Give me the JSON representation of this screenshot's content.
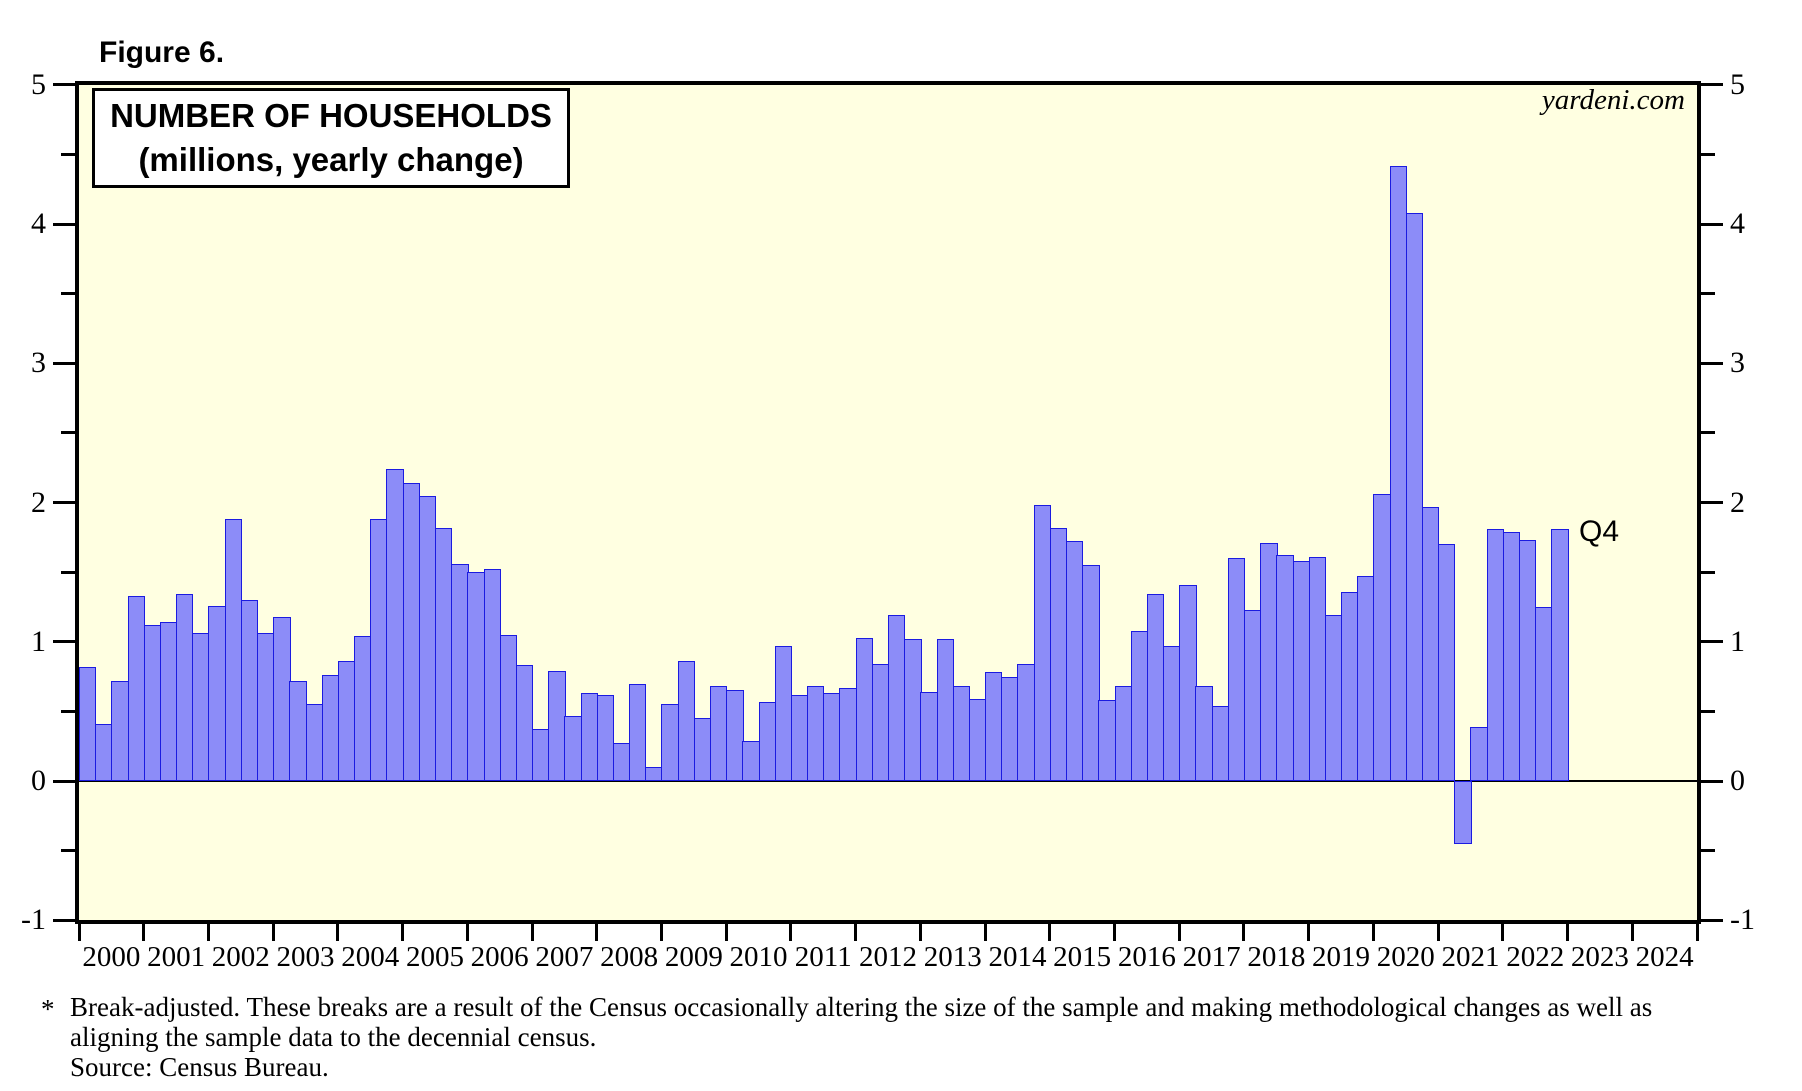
{
  "figure_label": "Figure 6.",
  "title": {
    "line1": "NUMBER OF HOUSEHOLDS",
    "line2": "(millions, yearly change)"
  },
  "watermark": "yardeni.com",
  "annotation": "Q4",
  "footnote": {
    "asterisk": "*",
    "line1": "Break-adjusted. These breaks are a result of the Census occasionally altering the size of the sample and making methodological changes as well as",
    "line2": "aligning the sample data to the decennial census.",
    "line3": "Source: Census Bureau."
  },
  "colors": {
    "plot_background": "#FFFFE1",
    "bar_fill": "#8C8CF8",
    "bar_border": "#1B1BE0",
    "frame": "#000000"
  },
  "chart_data": {
    "type": "bar",
    "title": "NUMBER OF HOUSEHOLDS",
    "subtitle": "(millions, yearly change)",
    "frequency": "quarterly",
    "first_period": "2000 Q1",
    "last_period": "2022 Q4",
    "last_period_label": "Q4",
    "ylim": [
      -1,
      5
    ],
    "y_major_ticks": [
      -1,
      0,
      1,
      2,
      3,
      4,
      5
    ],
    "y_minor_step": 0.5,
    "grid": false,
    "x_axis_year_labels": [
      "2000",
      "2001",
      "2002",
      "2003",
      "2004",
      "2005",
      "2006",
      "2007",
      "2008",
      "2009",
      "2010",
      "2011",
      "2012",
      "2013",
      "2014",
      "2015",
      "2016",
      "2017",
      "2018",
      "2019",
      "2020",
      "2021",
      "2022",
      "2023",
      "2024"
    ],
    "years": [
      {
        "year": 2000,
        "values": [
          0.82,
          0.41,
          0.72,
          1.33
        ]
      },
      {
        "year": 2001,
        "values": [
          1.12,
          1.14,
          1.34,
          1.06
        ]
      },
      {
        "year": 2002,
        "values": [
          1.26,
          1.88,
          1.3,
          1.06
        ]
      },
      {
        "year": 2003,
        "values": [
          1.18,
          0.72,
          0.55,
          0.76
        ]
      },
      {
        "year": 2004,
        "values": [
          0.86,
          1.04,
          1.88,
          2.24
        ]
      },
      {
        "year": 2005,
        "values": [
          2.14,
          2.05,
          1.82,
          1.56
        ]
      },
      {
        "year": 2006,
        "values": [
          1.5,
          1.52,
          1.05,
          0.83
        ]
      },
      {
        "year": 2007,
        "values": [
          0.37,
          0.79,
          0.47,
          0.63
        ]
      },
      {
        "year": 2008,
        "values": [
          0.62,
          0.27,
          0.7,
          0.1
        ]
      },
      {
        "year": 2009,
        "values": [
          0.55,
          0.86,
          0.45,
          0.68
        ]
      },
      {
        "year": 2010,
        "values": [
          0.65,
          0.29,
          0.57,
          0.97
        ]
      },
      {
        "year": 2011,
        "values": [
          0.62,
          0.68,
          0.63,
          0.67
        ]
      },
      {
        "year": 2012,
        "values": [
          1.03,
          0.84,
          1.19,
          1.02
        ]
      },
      {
        "year": 2013,
        "values": [
          0.64,
          1.02,
          0.68,
          0.59
        ]
      },
      {
        "year": 2014,
        "values": [
          0.78,
          0.75,
          0.84,
          1.98
        ]
      },
      {
        "year": 2015,
        "values": [
          1.82,
          1.72,
          1.55,
          0.58
        ]
      },
      {
        "year": 2016,
        "values": [
          0.68,
          1.08,
          1.34,
          0.97
        ]
      },
      {
        "year": 2017,
        "values": [
          1.41,
          0.68,
          0.54,
          1.6
        ]
      },
      {
        "year": 2018,
        "values": [
          1.23,
          1.71,
          1.62,
          1.58
        ]
      },
      {
        "year": 2019,
        "values": [
          1.61,
          1.19,
          1.36,
          1.47
        ]
      },
      {
        "year": 2020,
        "values": [
          2.06,
          4.42,
          4.08,
          1.97
        ]
      },
      {
        "year": 2021,
        "values": [
          1.7,
          -0.45,
          0.39,
          1.81
        ]
      },
      {
        "year": 2022,
        "values": [
          1.79,
          1.73,
          1.25,
          1.81
        ]
      }
    ]
  }
}
